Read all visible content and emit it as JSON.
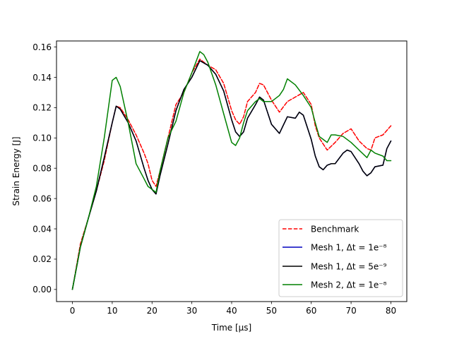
{
  "chart_data": {
    "type": "line",
    "xlabel": "Time [μs]",
    "ylabel": "Strain Energy [J]",
    "xlim": [
      -4,
      84
    ],
    "ylim": [
      -0.008,
      0.164
    ],
    "xticks": [
      0,
      10,
      20,
      30,
      40,
      50,
      60,
      70,
      80
    ],
    "xtick_labels": [
      "0",
      "10",
      "20",
      "30",
      "40",
      "50",
      "60",
      "70",
      "80"
    ],
    "yticks": [
      0.0,
      0.02,
      0.04,
      0.06,
      0.08,
      0.1,
      0.12,
      0.14,
      0.16
    ],
    "ytick_labels": [
      "0.00",
      "0.02",
      "0.04",
      "0.06",
      "0.08",
      "0.10",
      "0.12",
      "0.14",
      "0.16"
    ],
    "grid": false,
    "legend_position": "lower-right",
    "series": [
      {
        "name": "Benchmark",
        "color": "#ff0000",
        "dash": "dashed",
        "x": [
          0,
          2,
          4,
          6,
          8,
          10,
          11,
          12,
          14,
          16,
          18,
          19,
          20,
          21,
          22,
          24,
          26,
          28,
          30,
          32,
          33,
          34,
          36,
          38,
          40,
          41,
          42,
          43,
          44,
          46,
          47,
          48,
          50,
          52,
          54,
          56,
          58,
          60,
          61,
          62,
          63,
          64,
          66,
          68,
          70,
          72,
          74,
          75,
          76,
          78,
          80
        ],
        "y": [
          0.0,
          0.03,
          0.047,
          0.065,
          0.085,
          0.11,
          0.121,
          0.12,
          0.112,
          0.102,
          0.09,
          0.083,
          0.072,
          0.068,
          0.078,
          0.1,
          0.122,
          0.13,
          0.143,
          0.152,
          0.15,
          0.148,
          0.145,
          0.136,
          0.118,
          0.112,
          0.109,
          0.114,
          0.124,
          0.13,
          0.136,
          0.135,
          0.125,
          0.117,
          0.124,
          0.127,
          0.13,
          0.122,
          0.108,
          0.1,
          0.096,
          0.092,
          0.097,
          0.103,
          0.106,
          0.098,
          0.093,
          0.092,
          0.1,
          0.102,
          0.108
        ]
      },
      {
        "name": "Mesh 1, Δt = 1e⁻⁸",
        "color": "#0000bf",
        "dash": "solid",
        "x": [
          0,
          2,
          4,
          6,
          8,
          10,
          11,
          12,
          14,
          16,
          18,
          19,
          20,
          21,
          22,
          24,
          26,
          28,
          30,
          32,
          34,
          36,
          38,
          40,
          41,
          42,
          43,
          44,
          46,
          47,
          48,
          50,
          52,
          54,
          56,
          57,
          58,
          60,
          61,
          62,
          63,
          64,
          65,
          66,
          68,
          69,
          70,
          72,
          73,
          74,
          75,
          76,
          78,
          79,
          80
        ],
        "y": [
          0.0,
          0.028,
          0.047,
          0.065,
          0.087,
          0.11,
          0.121,
          0.119,
          0.11,
          0.098,
          0.08,
          0.072,
          0.066,
          0.063,
          0.075,
          0.096,
          0.118,
          0.132,
          0.14,
          0.151,
          0.148,
          0.142,
          0.131,
          0.112,
          0.104,
          0.101,
          0.104,
          0.113,
          0.122,
          0.127,
          0.125,
          0.109,
          0.103,
          0.114,
          0.113,
          0.117,
          0.115,
          0.099,
          0.088,
          0.081,
          0.079,
          0.082,
          0.083,
          0.083,
          0.09,
          0.092,
          0.091,
          0.083,
          0.078,
          0.075,
          0.077,
          0.081,
          0.082,
          0.093,
          0.098
        ]
      },
      {
        "name": "Mesh 1, Δt = 5e⁻⁹",
        "color": "#000000",
        "dash": "solid",
        "x": [
          0,
          2,
          4,
          6,
          8,
          10,
          11,
          12,
          14,
          16,
          18,
          19,
          20,
          21,
          22,
          24,
          26,
          28,
          30,
          32,
          34,
          36,
          38,
          40,
          41,
          42,
          43,
          44,
          46,
          47,
          48,
          50,
          52,
          54,
          56,
          57,
          58,
          60,
          61,
          62,
          63,
          64,
          65,
          66,
          68,
          69,
          70,
          72,
          73,
          74,
          75,
          76,
          78,
          79,
          80
        ],
        "y": [
          0.0,
          0.028,
          0.047,
          0.065,
          0.087,
          0.11,
          0.121,
          0.119,
          0.11,
          0.098,
          0.08,
          0.072,
          0.066,
          0.063,
          0.075,
          0.096,
          0.118,
          0.132,
          0.14,
          0.151,
          0.148,
          0.142,
          0.131,
          0.112,
          0.104,
          0.101,
          0.104,
          0.113,
          0.122,
          0.127,
          0.125,
          0.109,
          0.103,
          0.114,
          0.113,
          0.117,
          0.115,
          0.099,
          0.088,
          0.081,
          0.079,
          0.082,
          0.083,
          0.083,
          0.09,
          0.092,
          0.091,
          0.083,
          0.078,
          0.075,
          0.077,
          0.081,
          0.082,
          0.093,
          0.098
        ]
      },
      {
        "name": "Mesh 2, Δt = 1e⁻⁸",
        "color": "#008000",
        "dash": "solid",
        "x": [
          0,
          2,
          4,
          6,
          8,
          10,
          11,
          12,
          14,
          16,
          18,
          19,
          20,
          21,
          22,
          24,
          26,
          28,
          30,
          32,
          33,
          34,
          36,
          38,
          40,
          41,
          42,
          43,
          44,
          46,
          47,
          48,
          50,
          52,
          53,
          54,
          56,
          58,
          60,
          61,
          62,
          63,
          64,
          65,
          66,
          68,
          70,
          72,
          74,
          75,
          76,
          78,
          79,
          80
        ],
        "y": [
          0.0,
          0.028,
          0.047,
          0.068,
          0.1,
          0.138,
          0.14,
          0.134,
          0.11,
          0.083,
          0.073,
          0.068,
          0.066,
          0.064,
          0.078,
          0.1,
          0.111,
          0.13,
          0.143,
          0.157,
          0.155,
          0.15,
          0.135,
          0.116,
          0.097,
          0.095,
          0.1,
          0.11,
          0.118,
          0.124,
          0.126,
          0.124,
          0.124,
          0.128,
          0.132,
          0.139,
          0.135,
          0.128,
          0.12,
          0.11,
          0.101,
          0.099,
          0.097,
          0.102,
          0.102,
          0.101,
          0.097,
          0.092,
          0.087,
          0.092,
          0.09,
          0.088,
          0.085,
          0.085
        ]
      }
    ]
  }
}
